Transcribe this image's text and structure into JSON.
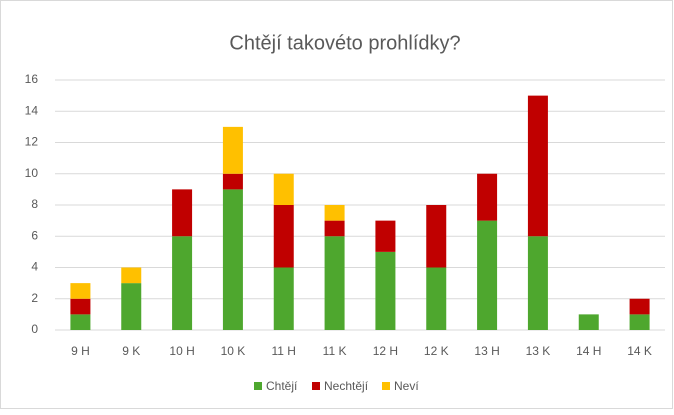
{
  "chart_data": {
    "type": "stacked-bar",
    "title": "Chtějí takovéto prohlídky?",
    "categories": [
      "9 H",
      "9 K",
      "10 H",
      "10 K",
      "11 H",
      "11 K",
      "12 H",
      "12 K",
      "13 H",
      "13 K",
      "14 H",
      "14 K"
    ],
    "series": [
      {
        "name": "Chtějí",
        "color": "#4ea72e",
        "values": [
          1,
          3,
          6,
          9,
          4,
          6,
          5,
          4,
          7,
          6,
          1,
          1
        ]
      },
      {
        "name": "Nechtějí",
        "color": "#c00000",
        "values": [
          1,
          0,
          3,
          1,
          4,
          1,
          2,
          4,
          3,
          9,
          0,
          1
        ]
      },
      {
        "name": "Neví",
        "color": "#ffc000",
        "values": [
          1,
          1,
          0,
          3,
          2,
          1,
          0,
          0,
          0,
          0,
          0,
          0
        ]
      }
    ],
    "ylim": [
      0,
      16
    ],
    "yticks": [
      0,
      2,
      4,
      6,
      8,
      10,
      12,
      14,
      16
    ],
    "grid": true,
    "legend": "bottom"
  }
}
